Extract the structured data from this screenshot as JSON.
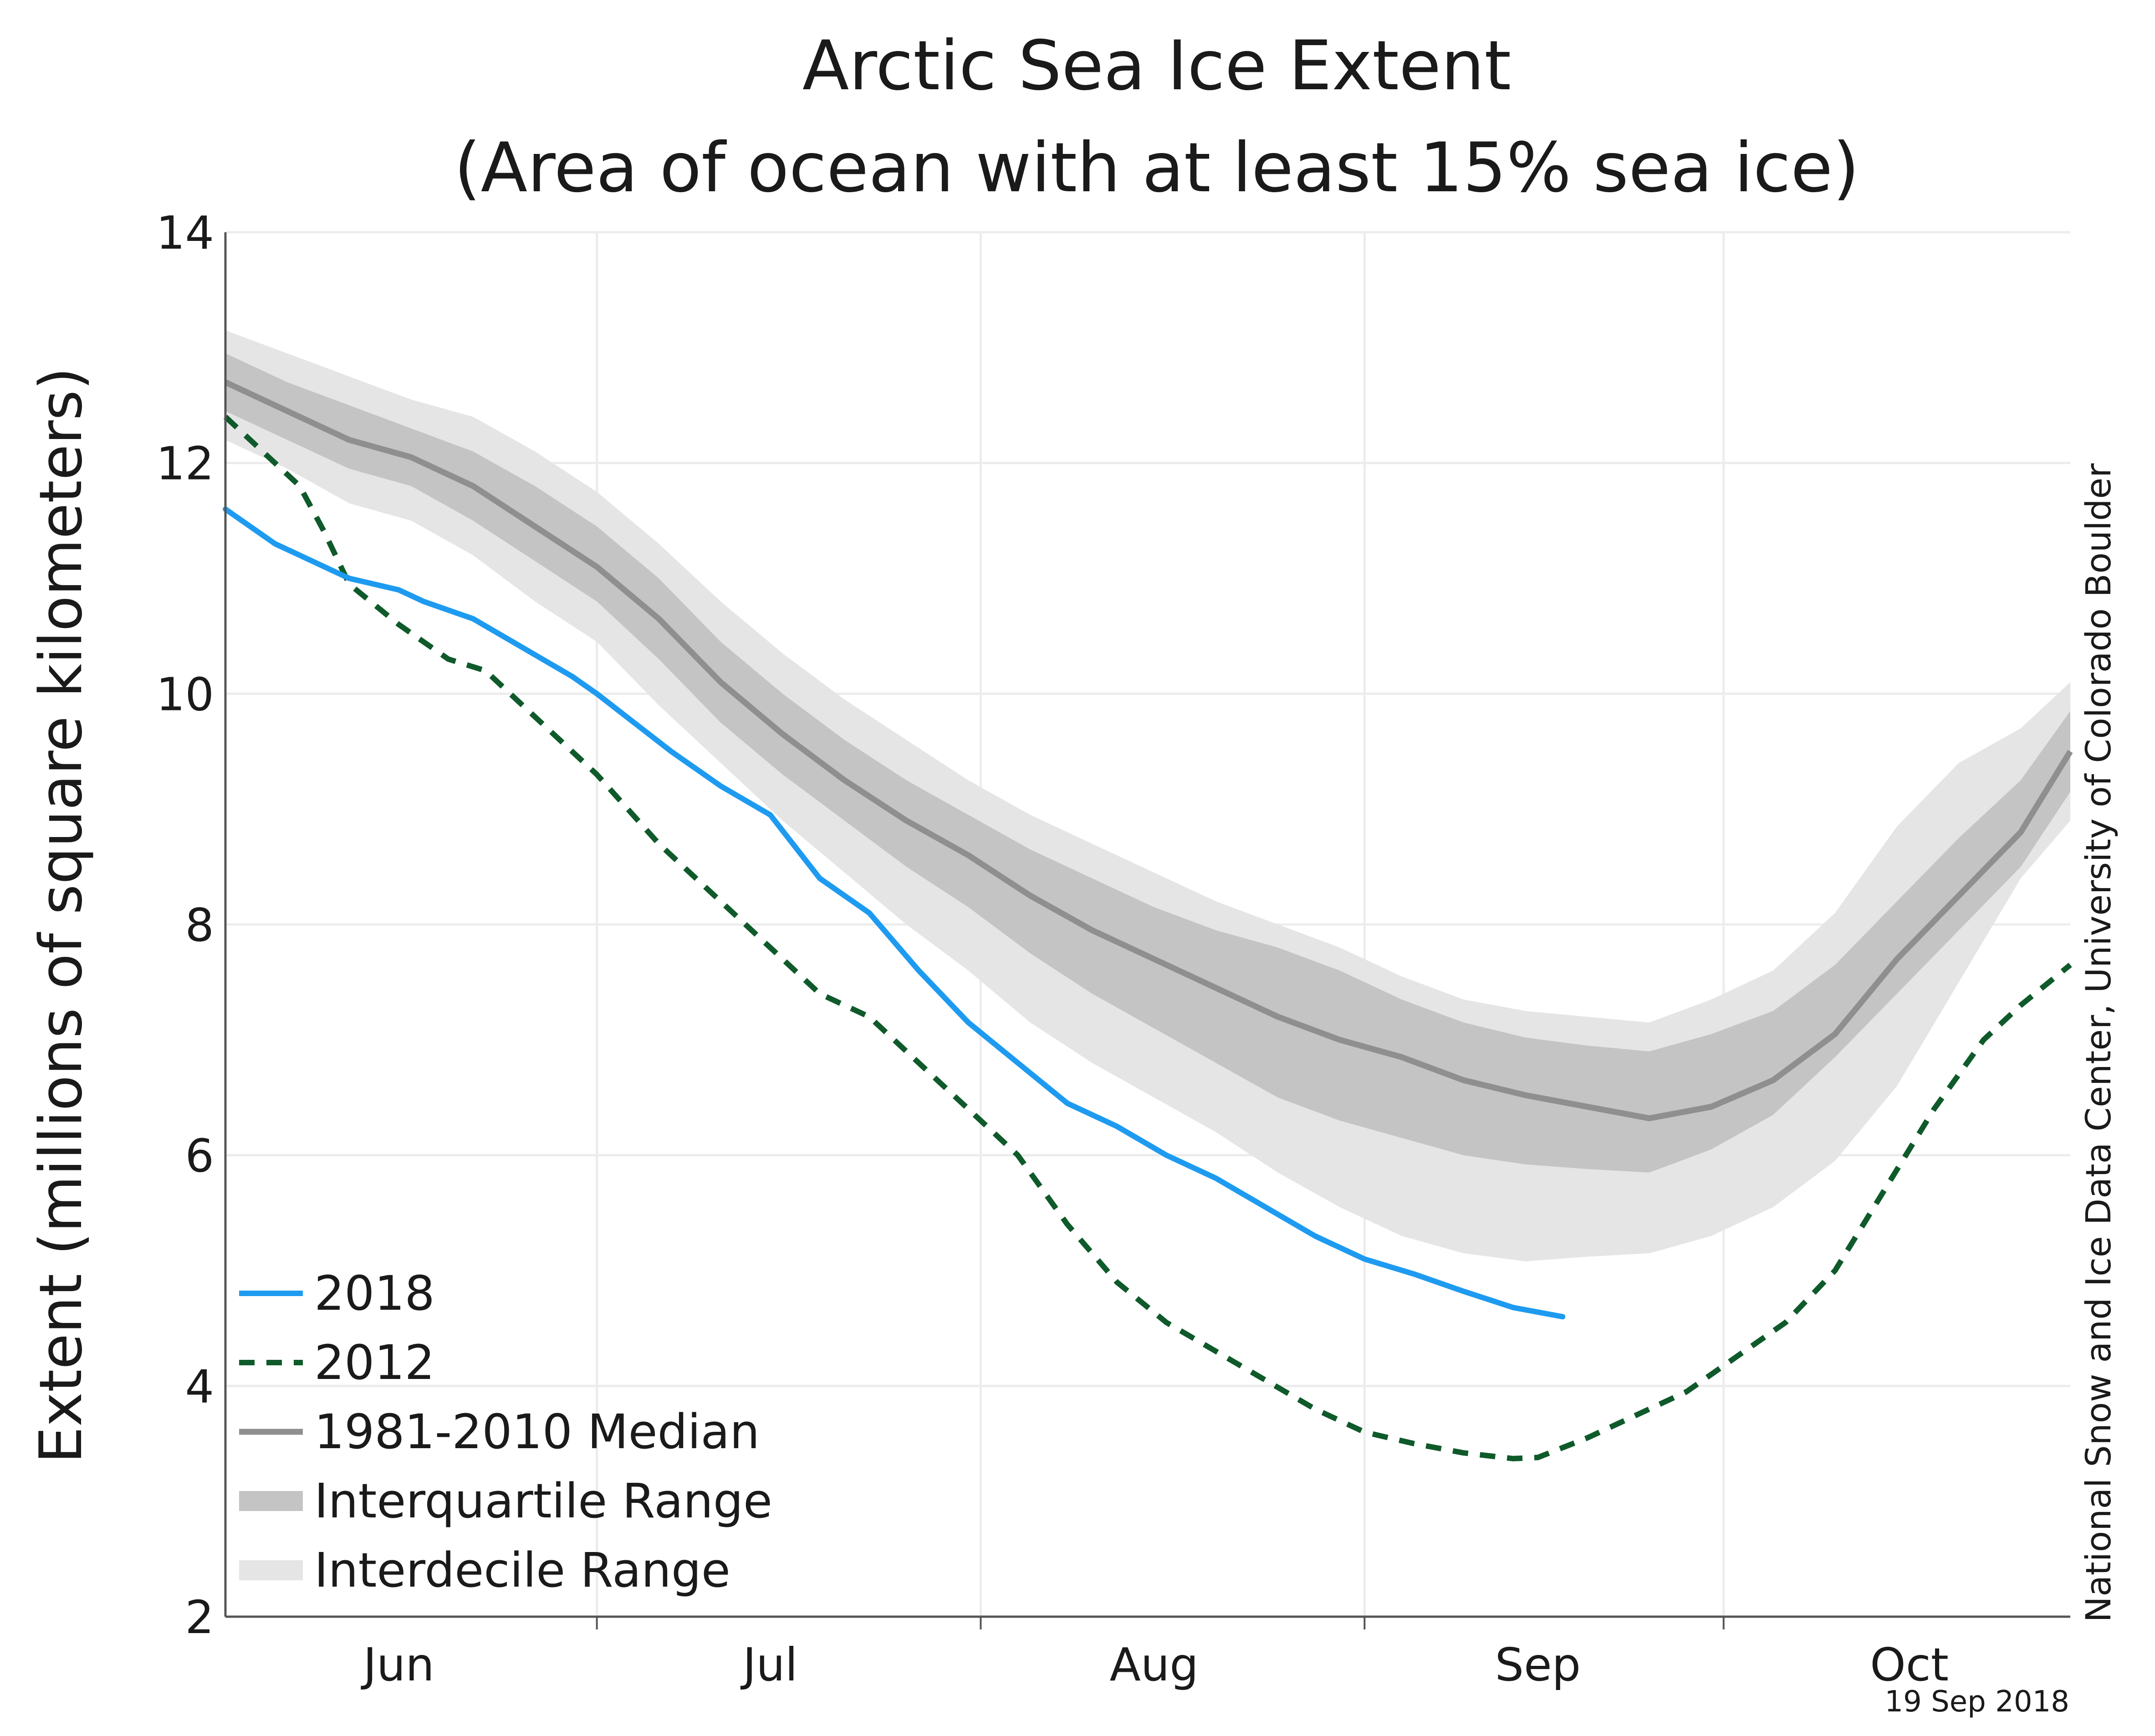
{
  "colors": {
    "y2018": "#1e9bf0",
    "y2012": "#0f5a2a",
    "median": "#8f8f8f",
    "interquartile": "#c4c4c4",
    "interdecile": "#e5e5e5",
    "grid": "#ececec",
    "axis": "#555555"
  },
  "credit": "National Snow and Ice Data Center, University of Colorado Boulder",
  "date_stamp": "19 Sep 2018",
  "chart_data": {
    "type": "line",
    "title": "Arctic Sea Ice Extent",
    "subtitle": "(Area of ocean with at least 15% sea ice)",
    "xlabel": "",
    "ylabel": "Extent (millions of square kilometers)",
    "ylim": [
      2,
      14
    ],
    "yticks": [
      2,
      4,
      6,
      8,
      10,
      12,
      14
    ],
    "xlim": [
      0,
      149
    ],
    "x_unit": "days since 15 May",
    "month_ticks": [
      {
        "label": "Jun",
        "center": 14,
        "boundary": 30
      },
      {
        "label": "Jul",
        "center": 44,
        "boundary": 61
      },
      {
        "label": "Aug",
        "center": 75,
        "boundary": 92
      },
      {
        "label": "Sep",
        "center": 106,
        "boundary": 121
      },
      {
        "label": "Oct",
        "center": 136,
        "boundary": null
      }
    ],
    "grid": true,
    "legend_position": "bottom-left",
    "x": [
      0,
      5,
      10,
      15,
      20,
      25,
      30,
      35,
      40,
      45,
      50,
      55,
      60,
      65,
      70,
      75,
      80,
      85,
      90,
      95,
      100,
      105,
      110,
      115,
      120,
      125,
      130,
      135,
      140,
      145,
      149
    ],
    "series": [
      {
        "name": "2018",
        "style": "solid",
        "x": [
          0,
          4,
          8,
          10,
          14,
          16,
          20,
          24,
          28,
          30,
          33,
          36,
          40,
          44,
          48,
          52,
          56,
          60,
          64,
          68,
          72,
          76,
          80,
          84,
          88,
          92,
          96,
          100,
          104,
          108
        ],
        "values": [
          11.6,
          11.3,
          11.1,
          11.0,
          10.9,
          10.8,
          10.65,
          10.4,
          10.15,
          10.0,
          9.75,
          9.5,
          9.2,
          8.95,
          8.4,
          8.1,
          7.6,
          7.15,
          6.8,
          6.45,
          6.25,
          6.0,
          5.8,
          5.55,
          5.3,
          5.1,
          4.97,
          4.82,
          4.68,
          4.6
        ]
      },
      {
        "name": "2012",
        "style": "dashed",
        "x": [
          0,
          3,
          6,
          8,
          10,
          14,
          18,
          21,
          24,
          27,
          30,
          35,
          40,
          44,
          48,
          52,
          56,
          60,
          64,
          68,
          72,
          76,
          80,
          84,
          88,
          92,
          96,
          100,
          104,
          106,
          110,
          114,
          118,
          122,
          126,
          130,
          134,
          138,
          142,
          145,
          149
        ],
        "values": [
          12.4,
          12.1,
          11.8,
          11.4,
          10.95,
          10.6,
          10.3,
          10.2,
          9.9,
          9.6,
          9.3,
          8.7,
          8.2,
          7.8,
          7.4,
          7.2,
          6.8,
          6.4,
          6.0,
          5.4,
          4.9,
          4.55,
          4.3,
          4.05,
          3.8,
          3.6,
          3.5,
          3.42,
          3.37,
          3.38,
          3.55,
          3.75,
          3.95,
          4.25,
          4.55,
          5.0,
          5.7,
          6.4,
          7.0,
          7.3,
          7.65
        ]
      },
      {
        "name": "1981-2010 Median",
        "style": "solid",
        "values": [
          12.7,
          12.45,
          12.2,
          12.05,
          11.8,
          11.45,
          11.1,
          10.65,
          10.1,
          9.65,
          9.25,
          8.9,
          8.6,
          8.25,
          7.95,
          7.7,
          7.45,
          7.2,
          7.0,
          6.85,
          6.65,
          6.52,
          6.42,
          6.32,
          6.42,
          6.65,
          7.05,
          7.7,
          8.25,
          8.8,
          9.5
        ]
      },
      {
        "name": "Interquartile Range",
        "style": "band",
        "lower": [
          12.45,
          12.2,
          11.95,
          11.8,
          11.5,
          11.15,
          10.8,
          10.3,
          9.75,
          9.3,
          8.9,
          8.5,
          8.15,
          7.75,
          7.4,
          7.1,
          6.8,
          6.5,
          6.3,
          6.15,
          6.0,
          5.92,
          5.88,
          5.85,
          6.05,
          6.35,
          6.85,
          7.4,
          7.95,
          8.5,
          9.15
        ],
        "upper": [
          12.95,
          12.7,
          12.5,
          12.3,
          12.1,
          11.8,
          11.45,
          11.0,
          10.45,
          10.0,
          9.6,
          9.25,
          8.95,
          8.65,
          8.4,
          8.15,
          7.95,
          7.8,
          7.6,
          7.35,
          7.15,
          7.02,
          6.95,
          6.9,
          7.05,
          7.25,
          7.65,
          8.2,
          8.75,
          9.25,
          9.85
        ]
      },
      {
        "name": "Interdecile Range",
        "style": "band",
        "lower": [
          12.2,
          11.95,
          11.65,
          11.5,
          11.2,
          10.8,
          10.45,
          9.9,
          9.4,
          8.9,
          8.45,
          8.0,
          7.6,
          7.15,
          6.8,
          6.5,
          6.2,
          5.85,
          5.55,
          5.3,
          5.15,
          5.08,
          5.12,
          5.15,
          5.3,
          5.55,
          5.95,
          6.6,
          7.5,
          8.4,
          8.9
        ],
        "upper": [
          13.15,
          12.95,
          12.75,
          12.55,
          12.4,
          12.1,
          11.75,
          11.3,
          10.8,
          10.35,
          9.95,
          9.6,
          9.25,
          8.95,
          8.7,
          8.45,
          8.2,
          8.0,
          7.8,
          7.55,
          7.35,
          7.25,
          7.2,
          7.15,
          7.35,
          7.6,
          8.1,
          8.85,
          9.4,
          9.7,
          10.1
        ]
      }
    ]
  }
}
